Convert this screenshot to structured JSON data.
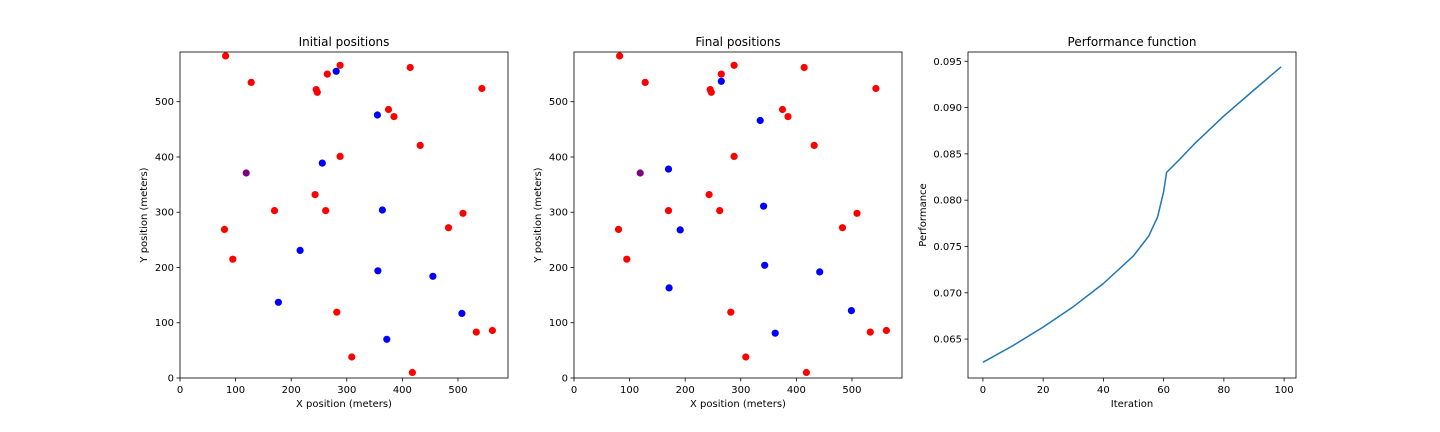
{
  "chart_data": [
    {
      "type": "scatter",
      "title": "Initial positions",
      "xlabel": "X position (meters)",
      "ylabel": "Y position (meters)",
      "xlim": [
        0,
        590
      ],
      "ylim": [
        0,
        590
      ],
      "xticks": [
        0,
        100,
        200,
        300,
        400,
        500
      ],
      "yticks": [
        0,
        100,
        200,
        300,
        400,
        500
      ],
      "series": [
        {
          "color": "#ff0000",
          "points": [
            [
              82,
              583
            ],
            [
              128,
              535
            ],
            [
              245,
              522
            ],
            [
              247,
              517
            ],
            [
              265,
              550
            ],
            [
              288,
              566
            ],
            [
              414,
              562
            ],
            [
              543,
              524
            ],
            [
              375,
              486
            ],
            [
              385,
              473
            ],
            [
              432,
              421
            ],
            [
              288,
              401
            ],
            [
              243,
              332
            ],
            [
              170,
              303
            ],
            [
              262,
              303
            ],
            [
              80,
              269
            ],
            [
              509,
              298
            ],
            [
              483,
              272
            ],
            [
              95,
              215
            ],
            [
              282,
              119
            ],
            [
              533,
              83
            ],
            [
              562,
              86
            ],
            [
              309,
              38
            ],
            [
              418,
              10
            ]
          ]
        },
        {
          "color": "#0000ff",
          "points": [
            [
              281,
              555
            ],
            [
              355,
              476
            ],
            [
              256,
              389
            ],
            [
              364,
              304
            ],
            [
              216,
              231
            ],
            [
              356,
              194
            ],
            [
              455,
              184
            ],
            [
              177,
              137
            ],
            [
              507,
              117
            ],
            [
              372,
              70
            ]
          ]
        },
        {
          "color": "#800080",
          "points": [
            [
              119,
              371
            ]
          ]
        }
      ]
    },
    {
      "type": "scatter",
      "title": "Final positions",
      "xlabel": "X position (meters)",
      "ylabel": "Y position (meters)",
      "xlim": [
        0,
        590
      ],
      "ylim": [
        0,
        590
      ],
      "xticks": [
        0,
        100,
        200,
        300,
        400,
        500
      ],
      "yticks": [
        0,
        100,
        200,
        300,
        400,
        500
      ],
      "series": [
        {
          "color": "#ff0000",
          "points": [
            [
              82,
              583
            ],
            [
              128,
              535
            ],
            [
              245,
              522
            ],
            [
              247,
              517
            ],
            [
              265,
              550
            ],
            [
              288,
              566
            ],
            [
              414,
              562
            ],
            [
              543,
              524
            ],
            [
              375,
              486
            ],
            [
              385,
              473
            ],
            [
              432,
              421
            ],
            [
              288,
              401
            ],
            [
              243,
              332
            ],
            [
              170,
              303
            ],
            [
              262,
              303
            ],
            [
              80,
              269
            ],
            [
              509,
              298
            ],
            [
              483,
              272
            ],
            [
              95,
              215
            ],
            [
              282,
              119
            ],
            [
              533,
              83
            ],
            [
              562,
              86
            ],
            [
              309,
              38
            ],
            [
              418,
              10
            ]
          ]
        },
        {
          "color": "#0000ff",
          "points": [
            [
              265,
              537
            ],
            [
              335,
              466
            ],
            [
              170,
              378
            ],
            [
              341,
              311
            ],
            [
              191,
              268
            ],
            [
              343,
              204
            ],
            [
              442,
              192
            ],
            [
              171,
              163
            ],
            [
              499,
              122
            ],
            [
              362,
              81
            ]
          ]
        },
        {
          "color": "#800080",
          "points": [
            [
              119,
              371
            ]
          ]
        }
      ]
    },
    {
      "type": "line",
      "title": "Performance function",
      "xlabel": "Iteration",
      "ylabel": "Performance",
      "xlim": [
        -4.95,
        103.95
      ],
      "ylim": [
        0.0608,
        0.096
      ],
      "xticks": [
        0,
        20,
        40,
        60,
        80,
        100
      ],
      "yticks": [
        0.065,
        0.07,
        0.075,
        0.08,
        0.085,
        0.09,
        0.095
      ],
      "ytick_labels": [
        "0.065",
        "0.070",
        "0.075",
        "0.080",
        "0.085",
        "0.090",
        "0.095"
      ],
      "series": [
        {
          "color": "#1f77b4",
          "x": [
            0,
            10,
            20,
            30,
            40,
            50,
            55,
            58,
            60,
            61,
            65,
            70,
            80,
            90,
            99
          ],
          "y": [
            0.0625,
            0.0643,
            0.0663,
            0.0685,
            0.071,
            0.074,
            0.0761,
            0.0782,
            0.0809,
            0.083,
            0.0843,
            0.086,
            0.0891,
            0.0919,
            0.0944
          ]
        }
      ]
    }
  ]
}
